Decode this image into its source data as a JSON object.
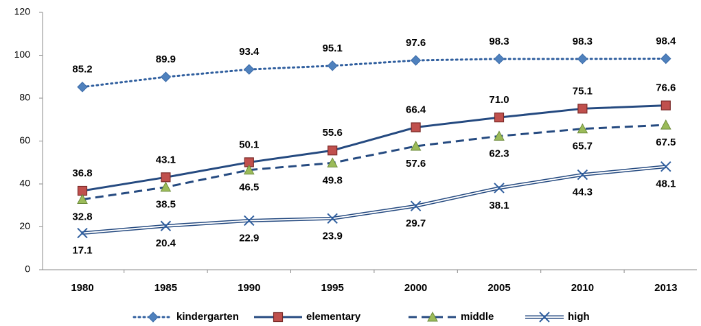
{
  "chart_data": {
    "type": "line",
    "categories": [
      "1980",
      "1985",
      "1990",
      "1995",
      "2000",
      "2005",
      "2010",
      "2013"
    ],
    "ylim": [
      0,
      120
    ],
    "yticks": [
      0,
      20,
      40,
      60,
      80,
      100,
      120
    ],
    "grid": false,
    "legend": "bottom",
    "series": [
      {
        "name": "kindergarten",
        "color": "#2f5e9e",
        "line_style": "dotted",
        "marker": "diamond",
        "marker_color": "#4f81bd",
        "label_position": "above",
        "values": [
          85.2,
          89.9,
          93.4,
          95.1,
          97.6,
          98.3,
          98.3,
          98.4
        ]
      },
      {
        "name": "elementary",
        "color": "#254a80",
        "line_style": "solid",
        "marker": "square",
        "marker_color": "#c0504d",
        "label_position": "above",
        "values": [
          36.8,
          43.1,
          50.1,
          55.6,
          66.4,
          71,
          75.1,
          76.6
        ],
        "value_labels": [
          "36.8",
          "43.1",
          "50.1",
          "55.6",
          "66.4",
          "71.0",
          "75.1",
          "76.6"
        ]
      },
      {
        "name": "middle",
        "color": "#254a80",
        "line_style": "dashed",
        "marker": "triangle",
        "marker_color": "#9bbb59",
        "label_position": "below",
        "values": [
          32.8,
          38.5,
          46.5,
          49.8,
          57.6,
          62.3,
          65.7,
          67.5
        ]
      },
      {
        "name": "high",
        "color": "#254a80",
        "line_style": "double",
        "marker": "x",
        "marker_color": "#2f5e9e",
        "label_position": "below",
        "values": [
          17.1,
          20.4,
          22.9,
          23.9,
          29.7,
          38.1,
          44.3,
          48.1
        ]
      }
    ]
  }
}
